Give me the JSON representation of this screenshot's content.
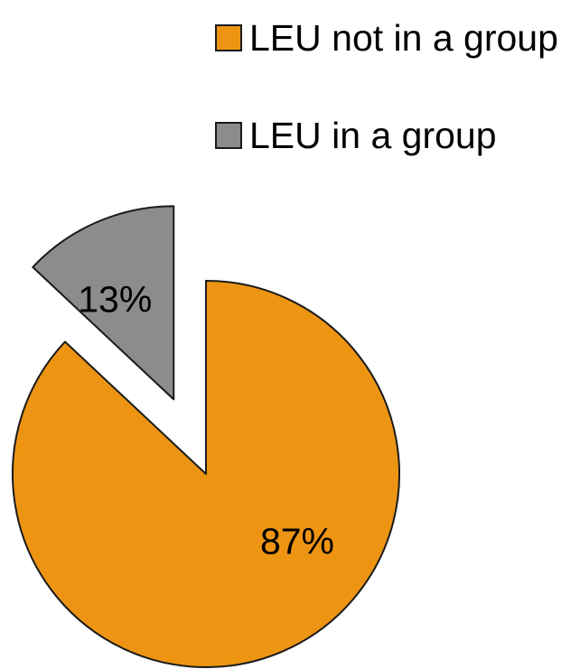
{
  "chart_data": {
    "type": "pie",
    "title": "",
    "slices": [
      {
        "label": "LEU not in a group",
        "value": 87,
        "data_label": "87%",
        "color": "#ED9513",
        "exploded": false
      },
      {
        "label": "LEU in a group",
        "value": 13,
        "data_label": "13%",
        "color": "#8C8C8C",
        "exploded": true
      }
    ],
    "legend": {
      "placement": "top-right",
      "entries": [
        "LEU not in a group",
        "LEU in a group"
      ]
    },
    "outline_color": "#1a1a1a"
  }
}
